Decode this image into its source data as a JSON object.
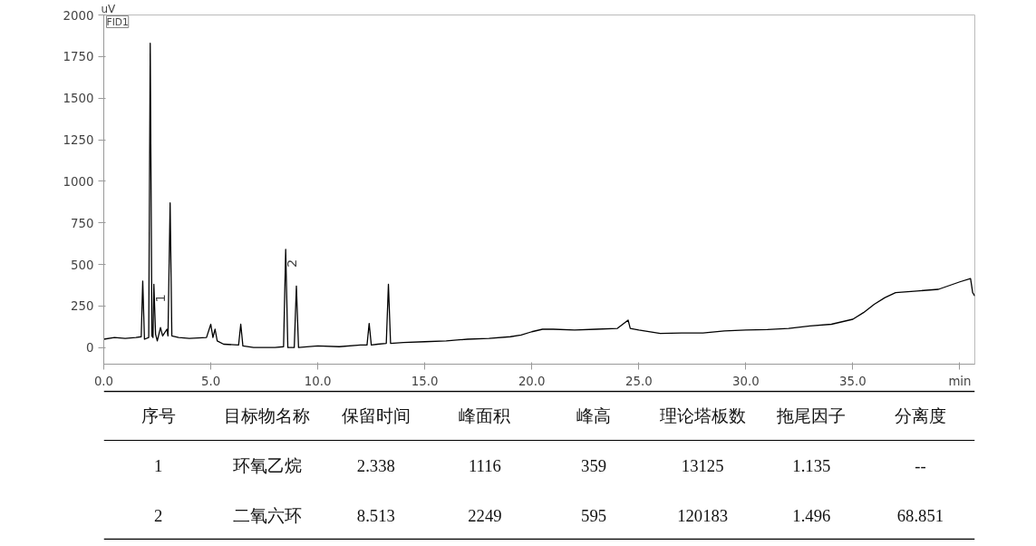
{
  "chart_data": [
    {
      "type": "line",
      "xlabel": null,
      "ylabel": "uV",
      "annotations": [
        "FID1",
        {
          "text": "1",
          "x": 2.34,
          "y": 380
        },
        {
          "text": "2",
          "x": 8.5,
          "y": 590
        }
      ],
      "x": [
        0,
        0.5,
        1.0,
        1.5,
        1.75,
        1.82,
        1.9,
        2.1,
        2.17,
        2.25,
        2.3,
        2.34,
        2.42,
        2.5,
        2.65,
        2.75,
        2.95,
        3.0,
        3.1,
        3.18,
        3.5,
        4.0,
        4.8,
        5.0,
        5.1,
        5.2,
        5.3,
        5.6,
        6.3,
        6.4,
        6.5,
        7.0,
        8.0,
        8.4,
        8.5,
        8.6,
        8.9,
        9.0,
        9.1,
        10,
        11,
        12,
        12.3,
        12.4,
        12.5,
        12.8,
        13.2,
        13.3,
        13.4,
        14,
        15,
        16,
        17,
        18,
        19,
        19.5,
        20,
        20.5,
        21,
        22,
        23,
        24,
        24.5,
        24.6,
        25,
        26,
        27,
        28,
        29,
        30,
        31,
        32,
        33,
        34,
        35,
        35.5,
        36,
        36.5,
        37,
        38,
        39,
        40,
        40.5,
        40.6,
        40.7
      ],
      "series": [
        {
          "color": "#000000",
          "values": [
            50,
            60,
            55,
            60,
            65,
            400,
            50,
            60,
            1830,
            70,
            60,
            380,
            80,
            40,
            120,
            70,
            110,
            70,
            870,
            70,
            60,
            55,
            60,
            140,
            60,
            110,
            40,
            20,
            15,
            140,
            10,
            0,
            0,
            5,
            590,
            0,
            0,
            370,
            0,
            10,
            5,
            15,
            15,
            145,
            15,
            20,
            25,
            380,
            25,
            30,
            35,
            40,
            50,
            55,
            65,
            75,
            95,
            110,
            110,
            105,
            110,
            115,
            165,
            115,
            105,
            85,
            88,
            88,
            100,
            105,
            108,
            115,
            130,
            140,
            170,
            210,
            260,
            300,
            330,
            340,
            350,
            395,
            415,
            330,
            310
          ]
        }
      ],
      "xlim": [
        0,
        40.7
      ],
      "ylim": [
        -100,
        2000
      ],
      "xticks": [
        {
          "value": 0,
          "label": "0.0"
        },
        {
          "value": 5,
          "label": "5.0"
        },
        {
          "value": 10,
          "label": "10.0"
        },
        {
          "value": 15,
          "label": "15.0"
        },
        {
          "value": 20,
          "label": "20.0"
        },
        {
          "value": 25,
          "label": "25.0"
        },
        {
          "value": 30,
          "label": "30.0"
        },
        {
          "value": 35,
          "label": "35.0"
        },
        {
          "value": 40,
          "label": "min"
        }
      ],
      "yticks": [
        0,
        250,
        500,
        750,
        1000,
        1250,
        1500,
        1750,
        2000
      ],
      "grid": false,
      "marker": "none",
      "line_style": "solid"
    },
    {
      "type": "other",
      "categories": [
        "序号",
        "目标物名称",
        "保留时间",
        "峰面积",
        "峰高",
        "理论塔板数",
        "拖尾因子",
        "分离度"
      ],
      "cell_labels": [
        [
          "1",
          "环氧乙烷",
          "2.338",
          "1116",
          "359",
          "13125",
          "1.135",
          "--"
        ],
        [
          "2",
          "二氧六环",
          "8.513",
          "2249",
          "595",
          "120183",
          "1.496",
          "68.851"
        ]
      ]
    }
  ]
}
